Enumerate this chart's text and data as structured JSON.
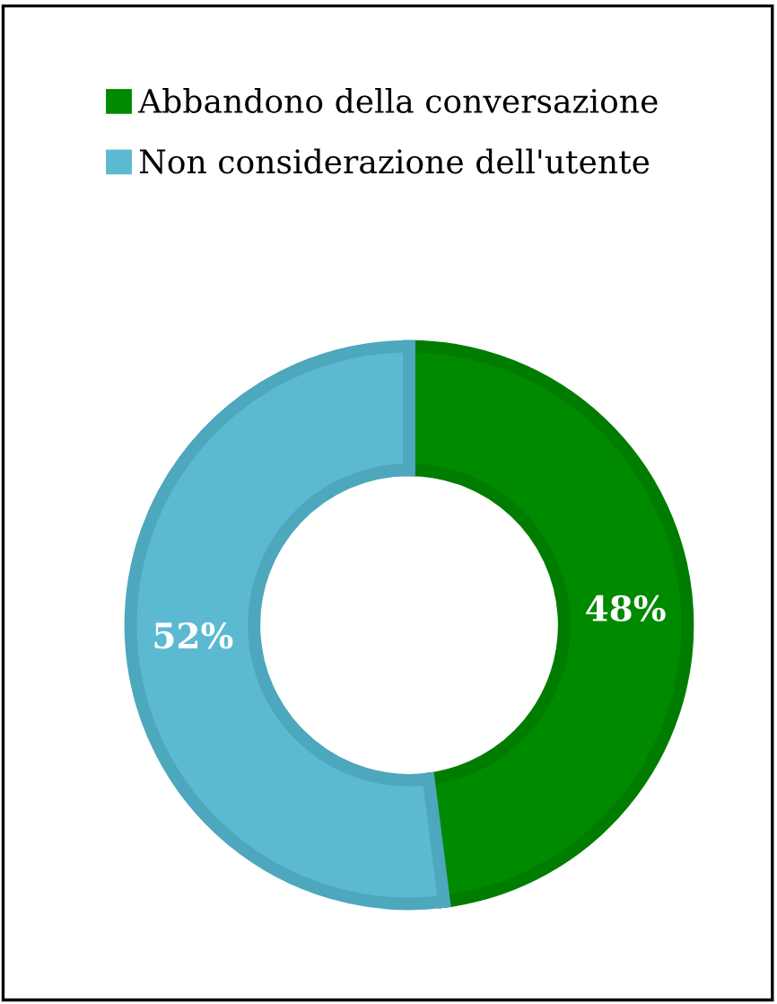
{
  "chart_data": {
    "type": "donut",
    "categories": [
      "Abbandono della conversazione",
      "Non considerazione dell'utente"
    ],
    "values": [
      48,
      52
    ],
    "colors": [
      "#008a00",
      "#5bbad2"
    ],
    "value_labels": [
      "48%",
      "52%"
    ],
    "legend": "top left"
  }
}
